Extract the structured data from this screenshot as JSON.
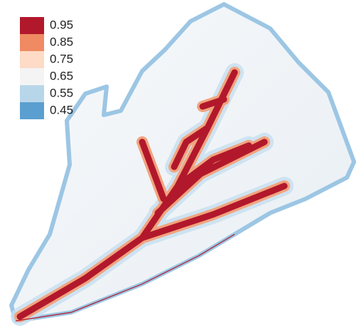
{
  "legend": {
    "items": [
      {
        "label": "0.95",
        "color": "#b2182b"
      },
      {
        "label": "0.85",
        "color": "#ef8a62"
      },
      {
        "label": "0.75",
        "color": "#fddbc7"
      },
      {
        "label": "0.65",
        "color": "#f4f4f4"
      },
      {
        "label": "0.55",
        "color": "#b8d6ea"
      },
      {
        "label": "0.45",
        "color": "#5a9fd0"
      }
    ]
  }
}
